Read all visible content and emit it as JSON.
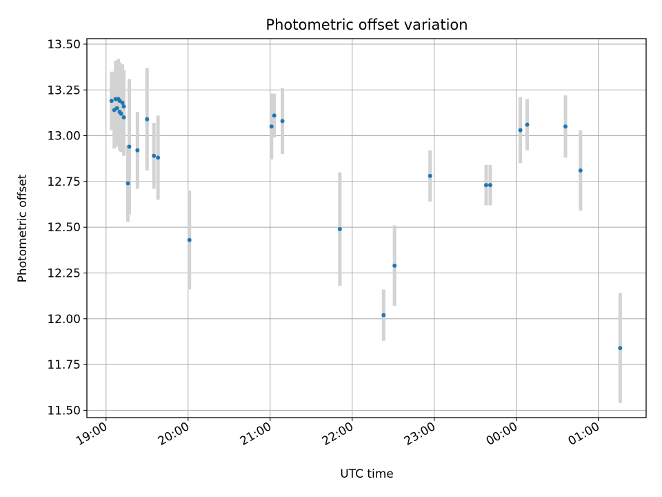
{
  "chart_data": {
    "type": "scatter",
    "title": "Photometric offset variation",
    "xlabel": "UTC time",
    "ylabel": "Photometric offset",
    "x_ticks": [
      "19:00",
      "20:00",
      "21:00",
      "22:00",
      "23:00",
      "00:00",
      "01:00"
    ],
    "y_ticks": [
      "11.50",
      "11.75",
      "12.00",
      "12.25",
      "12.50",
      "12.75",
      "13.00",
      "13.25",
      "13.50"
    ],
    "xlim": [
      "18:46",
      "01:35"
    ],
    "ylim": [
      11.46,
      13.53
    ],
    "grid": true,
    "marker_color": "#1f77b4",
    "errorbar_color": "#d3d3d3",
    "points": [
      {
        "t": "19:04",
        "y": 13.19,
        "err": 0.16
      },
      {
        "t": "19:06",
        "y": 13.14,
        "err": 0.21
      },
      {
        "t": "19:07",
        "y": 13.2,
        "err": 0.21
      },
      {
        "t": "19:08",
        "y": 13.15,
        "err": 0.21
      },
      {
        "t": "19:09",
        "y": 13.2,
        "err": 0.22
      },
      {
        "t": "19:10",
        "y": 13.13,
        "err": 0.21
      },
      {
        "t": "19:10",
        "y": 13.19,
        "err": 0.21
      },
      {
        "t": "19:11",
        "y": 13.12,
        "err": 0.21
      },
      {
        "t": "19:12",
        "y": 13.18,
        "err": 0.21
      },
      {
        "t": "19:13",
        "y": 13.1,
        "err": 0.21
      },
      {
        "t": "19:13",
        "y": 13.16,
        "err": 0.2
      },
      {
        "t": "19:16",
        "y": 12.74,
        "err": 0.21
      },
      {
        "t": "19:17",
        "y": 12.94,
        "err": 0.37
      },
      {
        "t": "19:23",
        "y": 12.92,
        "err": 0.21
      },
      {
        "t": "19:30",
        "y": 13.09,
        "err": 0.28
      },
      {
        "t": "19:35",
        "y": 12.89,
        "err": 0.18
      },
      {
        "t": "19:38",
        "y": 12.88,
        "err": 0.23
      },
      {
        "t": "20:01",
        "y": 12.43,
        "err": 0.27
      },
      {
        "t": "21:01",
        "y": 13.05,
        "err": 0.18
      },
      {
        "t": "21:03",
        "y": 13.11,
        "err": 0.12
      },
      {
        "t": "21:09",
        "y": 13.08,
        "err": 0.18
      },
      {
        "t": "21:51",
        "y": 12.49,
        "err": 0.31
      },
      {
        "t": "22:23",
        "y": 12.02,
        "err": 0.14
      },
      {
        "t": "22:31",
        "y": 12.29,
        "err": 0.22
      },
      {
        "t": "22:57",
        "y": 12.78,
        "err": 0.14
      },
      {
        "t": "23:38",
        "y": 12.73,
        "err": 0.11
      },
      {
        "t": "23:41",
        "y": 12.73,
        "err": 0.11
      },
      {
        "t": "00:03",
        "y": 13.03,
        "err": 0.18
      },
      {
        "t": "00:08",
        "y": 13.06,
        "err": 0.14
      },
      {
        "t": "00:36",
        "y": 13.05,
        "err": 0.17
      },
      {
        "t": "00:47",
        "y": 12.81,
        "err": 0.22
      },
      {
        "t": "01:16",
        "y": 11.84,
        "err": 0.3
      }
    ]
  }
}
